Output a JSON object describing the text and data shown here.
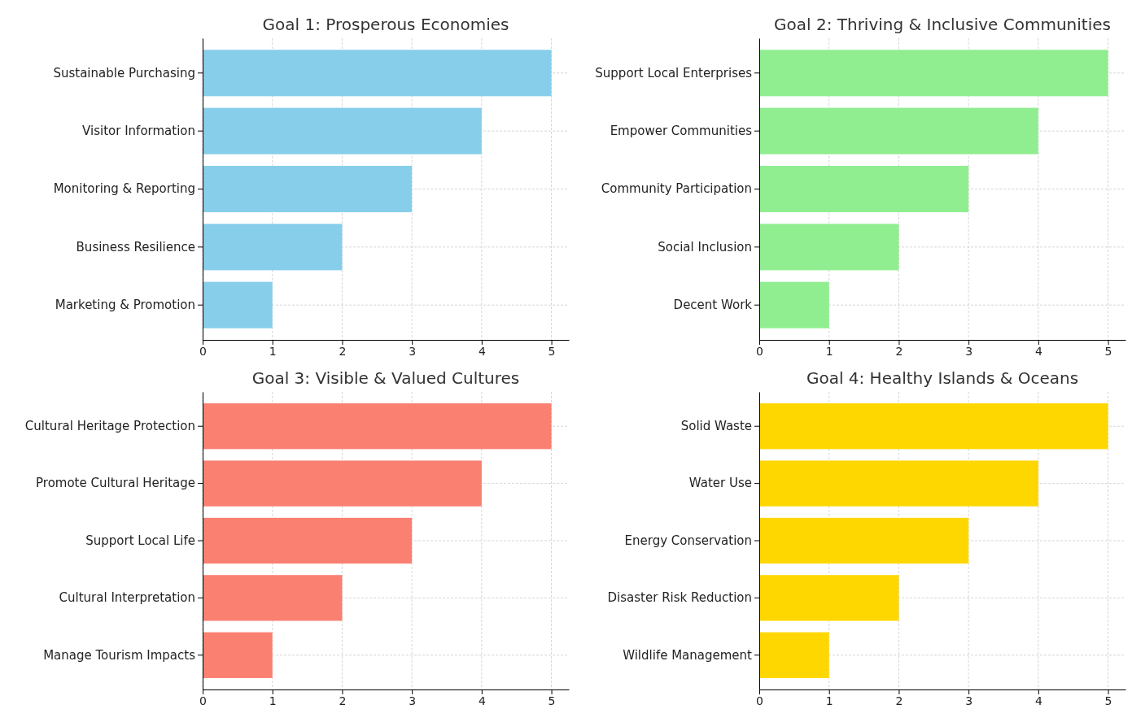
{
  "chart_data": [
    {
      "type": "bar",
      "orientation": "horizontal",
      "title": "Goal 1: Prosperous Economies",
      "categories": [
        "Sustainable Purchasing",
        "Visitor Information",
        "Monitoring & Reporting",
        "Business Resilience",
        "Marketing & Promotion"
      ],
      "values": [
        5,
        4,
        3,
        2,
        1
      ],
      "color": "#87ceeb",
      "xlim": [
        0,
        5.25
      ],
      "xticks": [
        0,
        1,
        2,
        3,
        4,
        5
      ],
      "grid": true
    },
    {
      "type": "bar",
      "orientation": "horizontal",
      "title": "Goal 2: Thriving & Inclusive Communities",
      "categories": [
        "Support Local Enterprises",
        "Empower Communities",
        "Community Participation",
        "Social Inclusion",
        "Decent Work"
      ],
      "values": [
        5,
        4,
        3,
        2,
        1
      ],
      "color": "#90ee90",
      "xlim": [
        0,
        5.25
      ],
      "xticks": [
        0,
        1,
        2,
        3,
        4,
        5
      ],
      "grid": true
    },
    {
      "type": "bar",
      "orientation": "horizontal",
      "title": "Goal 3: Visible & Valued Cultures",
      "categories": [
        "Cultural Heritage Protection",
        "Promote Cultural Heritage",
        "Support Local Life",
        "Cultural Interpretation",
        "Manage Tourism Impacts"
      ],
      "values": [
        5,
        4,
        3,
        2,
        1
      ],
      "color": "#fa8072",
      "xlim": [
        0,
        5.25
      ],
      "xticks": [
        0,
        1,
        2,
        3,
        4,
        5
      ],
      "grid": true
    },
    {
      "type": "bar",
      "orientation": "horizontal",
      "title": "Goal 4: Healthy Islands & Oceans",
      "categories": [
        "Solid Waste",
        "Water Use",
        "Energy Conservation",
        "Disaster Risk Reduction",
        "Wildlife Management"
      ],
      "values": [
        5,
        4,
        3,
        2,
        1
      ],
      "color": "#ffd700",
      "xlim": [
        0,
        5.25
      ],
      "xticks": [
        0,
        1,
        2,
        3,
        4,
        5
      ],
      "grid": true
    }
  ]
}
